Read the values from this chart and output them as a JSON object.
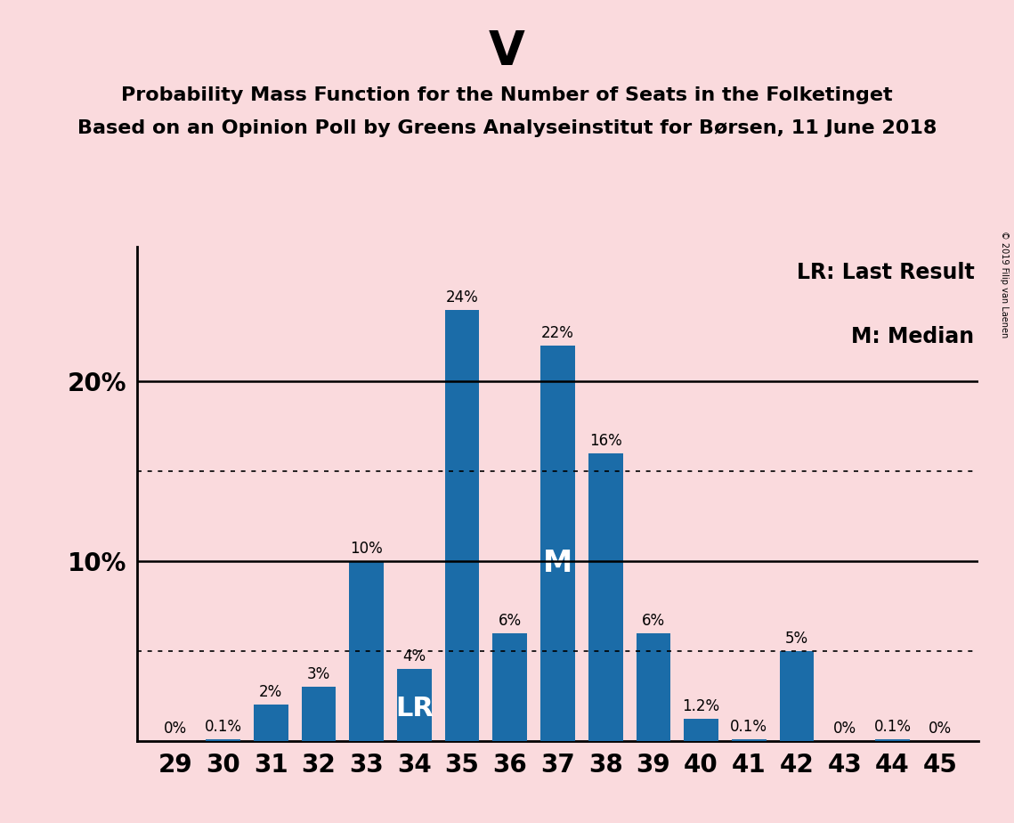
{
  "title_main": "V",
  "title_line1": "Probability Mass Function for the Number of Seats in the Folketinget",
  "title_line2": "Based on an Opinion Poll by Greens Analyseinstitut for Børsen, 11 June 2018",
  "copyright": "© 2019 Filip van Laenen",
  "seats": [
    29,
    30,
    31,
    32,
    33,
    34,
    35,
    36,
    37,
    38,
    39,
    40,
    41,
    42,
    43,
    44,
    45
  ],
  "probabilities": [
    0.0,
    0.1,
    2.0,
    3.0,
    10.0,
    4.0,
    24.0,
    6.0,
    22.0,
    16.0,
    6.0,
    1.2,
    0.1,
    5.0,
    0.0,
    0.1,
    0.0
  ],
  "bar_color": "#1b6ca8",
  "background_color": "#fadadd",
  "last_result_seat": 34,
  "median_seat": 37,
  "dotted_lines": [
    5.0,
    15.0
  ],
  "solid_lines": [
    10.0,
    20.0
  ],
  "legend_lr": "LR: Last Result",
  "legend_m": "M: Median",
  "bar_label_fontsize": 12,
  "title_main_fontsize": 38,
  "title_sub_fontsize": 16,
  "axis_tick_fontsize": 20,
  "legend_fontsize": 17,
  "lr_label_fontsize": 22,
  "m_label_fontsize": 24,
  "ylim_max": 27.5,
  "bar_width": 0.72
}
